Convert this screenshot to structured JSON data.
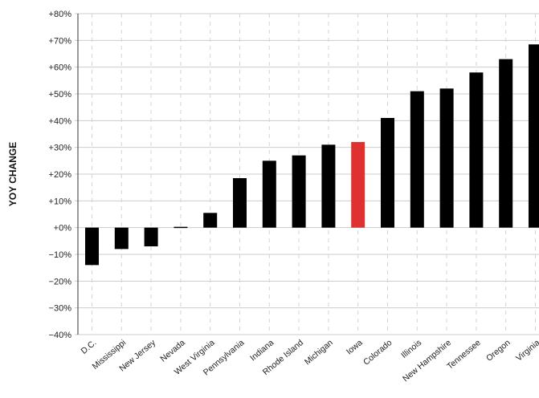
{
  "chart_data": {
    "type": "bar",
    "title": "",
    "xlabel": "",
    "ylabel": "YOY CHANGE",
    "ylim": [
      -40,
      80
    ],
    "yticks": [
      80,
      70,
      60,
      50,
      40,
      30,
      20,
      10,
      0,
      -10,
      -20,
      -30,
      -40
    ],
    "ytick_labels": [
      "+80%",
      "+70%",
      "+60%",
      "+50%",
      "+40%",
      "+30%",
      "+20%",
      "+10%",
      "+0%",
      "−10%",
      "−20%",
      "−30%",
      "−40%"
    ],
    "categories": [
      "D.C.",
      "Mississippi",
      "New Jersey",
      "Nevada",
      "West Virginia",
      "Pennsylvania",
      "Indiana",
      "Rhode Island",
      "Michigan",
      "Iowa",
      "Colorado",
      "Illinois",
      "New Hampshire",
      "Tennessee",
      "Oregon",
      "Virginia"
    ],
    "values": [
      -14,
      -8,
      -7,
      0.3,
      5.5,
      18.5,
      25,
      27,
      31,
      32,
      41,
      51,
      52,
      58,
      63,
      68.5
    ],
    "highlight": "Iowa",
    "grid": true,
    "colors": {
      "bar": "#000000",
      "highlight": "#e03131",
      "grid": "#cccccc"
    }
  }
}
